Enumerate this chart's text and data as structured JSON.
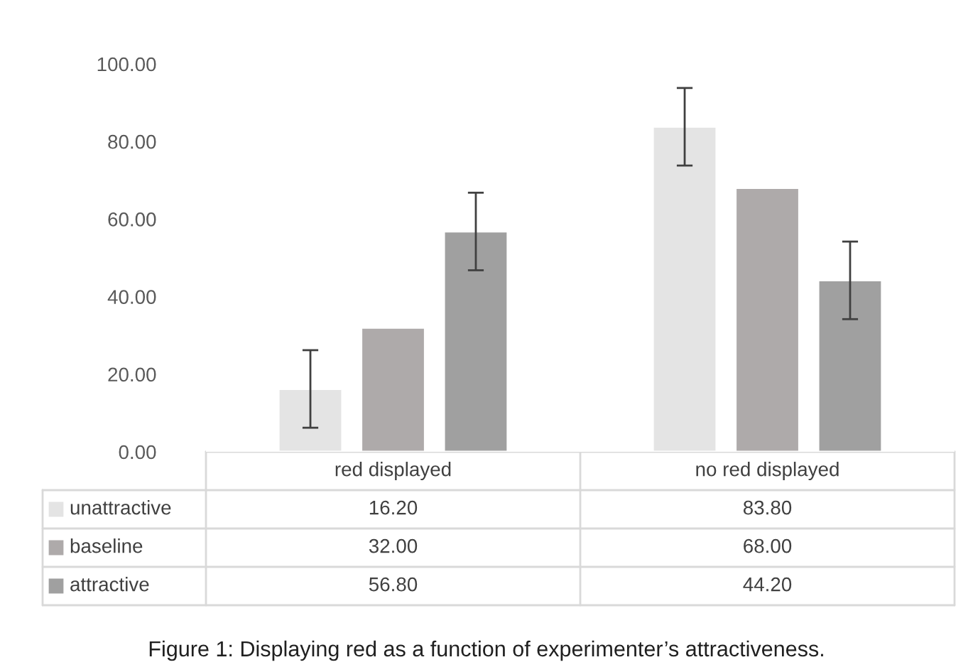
{
  "chart_data": {
    "type": "bar",
    "categories": [
      "red displayed",
      "no red displayed"
    ],
    "series": [
      {
        "name": "unattractive",
        "color": "#e4e4e4",
        "values": [
          16.2,
          83.8
        ],
        "errors": [
          10,
          10
        ],
        "value_labels": [
          "16.20",
          "83.80"
        ]
      },
      {
        "name": "baseline",
        "color": "#aeaaaa",
        "values": [
          32.0,
          68.0
        ],
        "value_labels": [
          "32.00",
          "68.00"
        ]
      },
      {
        "name": "attractive",
        "color": "#a0a0a0",
        "values": [
          56.8,
          44.2
        ],
        "errors": [
          10,
          10
        ],
        "value_labels": [
          "56.80",
          "44.20"
        ]
      }
    ],
    "ylim": [
      0,
      100
    ],
    "yticks": [
      {
        "value": 0,
        "label": "0.00"
      },
      {
        "value": 20,
        "label": "20.00"
      },
      {
        "value": 40,
        "label": "40.00"
      },
      {
        "value": 60,
        "label": "60.00"
      },
      {
        "value": 80,
        "label": "80.00"
      },
      {
        "value": 100,
        "label": "100.00"
      }
    ],
    "grid": false,
    "legend": "bottom",
    "annotations": [
      "Figure 1: Displaying red as a function of experimenter’s attractiveness."
    ]
  }
}
